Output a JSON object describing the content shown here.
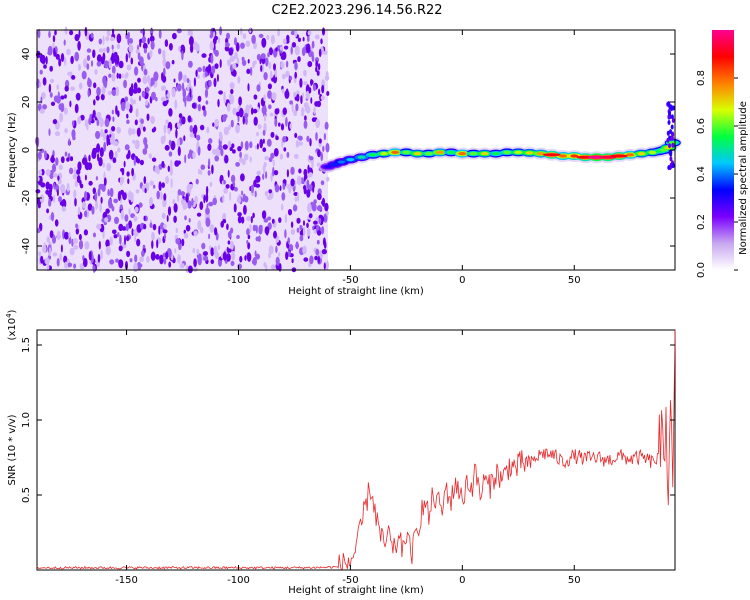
{
  "title": "C2E2.2023.296.14.56.R22",
  "chart_data": [
    {
      "type": "heatmap",
      "xlabel": "Height of straight line (km)",
      "ylabel": "Frequency (Hz)",
      "xlim": [
        -190,
        95
      ],
      "ylim": [
        -50,
        50
      ],
      "x_ticks": [
        -150,
        -100,
        -50,
        0,
        50
      ],
      "y_ticks": [
        -40,
        -20,
        0,
        20,
        40
      ],
      "grid": false,
      "noise_region_x": [
        -190,
        -60
      ],
      "ridge": {
        "x": [
          -60,
          -57,
          -54,
          -50,
          -45,
          -40,
          -35,
          -30,
          -25,
          -20,
          -15,
          -10,
          -5,
          0,
          5,
          10,
          15,
          20,
          25,
          30,
          35,
          40,
          45,
          50,
          55,
          60,
          65,
          70,
          75,
          80,
          85,
          88,
          90,
          92,
          94
        ],
        "y": [
          -7,
          -6,
          -5,
          -4,
          -3,
          -2,
          -1.5,
          -1,
          -1,
          -1.5,
          -1.5,
          -1,
          -1,
          -1.5,
          -1.5,
          -1.5,
          -1.5,
          -1,
          -1,
          -1.2,
          -1.5,
          -2,
          -2.5,
          -2.5,
          -3,
          -3,
          -3,
          -2.5,
          -2,
          -1.5,
          -1,
          -0.5,
          0,
          1,
          3
        ],
        "amplitude": [
          0.3,
          0.35,
          0.4,
          0.45,
          0.5,
          0.55,
          0.65,
          0.8,
          0.6,
          0.7,
          0.6,
          0.75,
          0.55,
          0.8,
          0.6,
          0.7,
          0.55,
          0.6,
          0.65,
          0.7,
          0.75,
          0.9,
          0.8,
          0.85,
          0.9,
          1.0,
          0.95,
          0.9,
          0.8,
          0.7,
          0.65,
          0.55,
          0.6,
          0.7,
          0.6
        ]
      },
      "colorbar": {
        "label": "Normalized spectral amplitude",
        "range": [
          0.0,
          1.0
        ],
        "ticks": [
          "0.0",
          "0.2",
          "0.4",
          "0.6",
          "0.8"
        ],
        "colors": [
          "#ffffff",
          "#c8a8f0",
          "#7b00ff",
          "#0000ff",
          "#00c8ff",
          "#00ff40",
          "#d8ff00",
          "#ff8000",
          "#ff0000",
          "#ff0090"
        ]
      }
    },
    {
      "type": "line",
      "xlabel": "Height of straight line (km)",
      "ylabel": "SNR (10 * v/v)",
      "y_multiplier": "(x10",
      "y_multiplier_exp": "4",
      "y_multiplier_close": ")",
      "xlim": [
        -190,
        95
      ],
      "ylim": [
        0,
        1.6
      ],
      "x_ticks": [
        -150,
        -100,
        -50,
        0,
        50
      ],
      "y_ticks": [
        0.5,
        1.0,
        1.5
      ],
      "y_tick_labels": [
        "0.5",
        "1.0",
        "1.5"
      ],
      "grid": false,
      "series": [
        {
          "color": "#e8282a",
          "x": [
            -190,
            -170,
            -150,
            -130,
            -110,
            -90,
            -70,
            -55,
            -50,
            -47,
            -45,
            -43,
            -41,
            -39,
            -37,
            -35,
            -33,
            -31,
            -29,
            -27,
            -25,
            -23,
            -21,
            -19,
            -17,
            -15,
            -13,
            -11,
            -9,
            -7,
            -5,
            -3,
            -1,
            0,
            2,
            4,
            6,
            8,
            10,
            12,
            15,
            18,
            21,
            24,
            27,
            30,
            33,
            36,
            40,
            45,
            50,
            55,
            60,
            65,
            70,
            75,
            80,
            85,
            88,
            90,
            91,
            92,
            93,
            94,
            95
          ],
          "y": [
            0.015,
            0.015,
            0.015,
            0.015,
            0.015,
            0.015,
            0.015,
            0.02,
            0.06,
            0.15,
            0.3,
            0.45,
            0.55,
            0.4,
            0.25,
            0.15,
            0.25,
            0.1,
            0.2,
            0.15,
            0.25,
            0.1,
            0.2,
            0.35,
            0.45,
            0.35,
            0.5,
            0.45,
            0.4,
            0.55,
            0.45,
            0.6,
            0.5,
            0.45,
            0.6,
            0.55,
            0.65,
            0.5,
            0.6,
            0.55,
            0.65,
            0.6,
            0.7,
            0.68,
            0.72,
            0.7,
            0.75,
            0.78,
            0.77,
            0.72,
            0.76,
            0.74,
            0.75,
            0.73,
            0.76,
            0.74,
            0.75,
            0.72,
            0.75,
            0.8,
            1.2,
            0.4,
            1.4,
            0.3,
            1.6
          ]
        }
      ]
    }
  ]
}
